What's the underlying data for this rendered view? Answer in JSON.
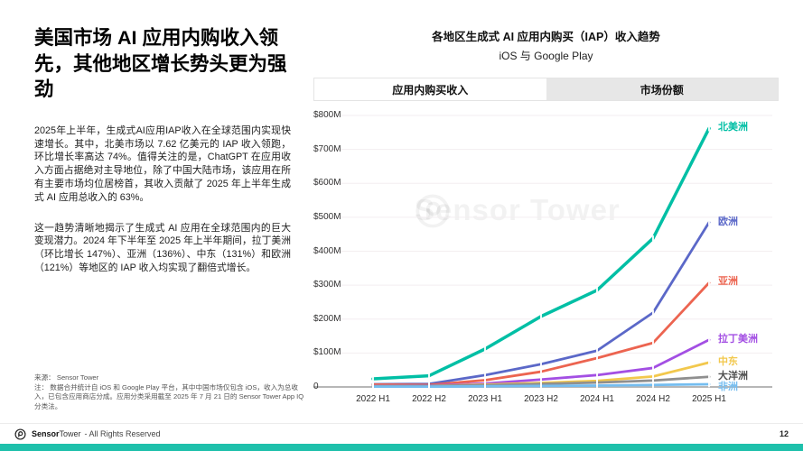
{
  "slide": {
    "title": "美国市场 AI 应用内购收入领先，其他地区增长势头更为强劲",
    "paragraphs": [
      "2025年上半年，生成式AI应用IAP收入在全球范围内实现快速增长。其中，北美市场以 7.62 亿美元的 IAP 收入领跑，环比增长率高达 74%。值得关注的是，ChatGPT 在应用收入方面占据绝对主导地位，除了中国大陆市场，该应用在所有主要市场均位居榜首，其收入贡献了 2025 年上半年生成式 AI 应用总收入的 63%。",
      "这一趋势清晰地揭示了生成式 AI 应用在全球范围内的巨大变现潜力。2024 年下半年至 2025 年上半年期间，拉丁美洲（环比增长 147%）、亚洲（136%）、中东（131%）和欧洲（121%）等地区的 IAP 收入均实现了翻倍式增长。",
      ""
    ],
    "source": "来源： Sensor Tower",
    "note": "注： 数据合并统计自 iOS 和 Google Play 平台，其中中国市场仅包含 iOS，收入为总收入，已包含应用商店分成。应用分类采用截至 2025 年 7 月 21 日的 Sensor Tower App IQ 分类法。"
  },
  "chart": {
    "title_line1": "各地区生成式 AI 应用内购买（IAP）收入趋势",
    "title_line2": "iOS 与 Google Play",
    "tabs": [
      {
        "label": "应用内购买收入",
        "active": true
      },
      {
        "label": "市场份额",
        "active": false
      }
    ],
    "watermark": "Sensor Tower"
  },
  "chart_data": {
    "type": "line",
    "title": "各地区生成式 AI 应用内购买（IAP）收入趋势",
    "subtitle": "iOS 与 Google Play",
    "unit": "USD (millions)",
    "categories": [
      "2022 H1",
      "2022 H2",
      "2023 H1",
      "2023 H2",
      "2024 H1",
      "2024 H2",
      "2025 H1"
    ],
    "ylim": [
      0,
      800
    ],
    "grid": true,
    "legend_position": "right-end-of-line",
    "yticks": [
      {
        "label": "$800M",
        "value": 800
      },
      {
        "label": "$700M",
        "value": 700
      },
      {
        "label": "$600M",
        "value": 600
      },
      {
        "label": "$500M",
        "value": 500
      },
      {
        "label": "$400M",
        "value": 400
      },
      {
        "label": "$300M",
        "value": 300
      },
      {
        "label": "$200M",
        "value": 200
      },
      {
        "label": "$100M",
        "value": 100
      },
      {
        "label": "0",
        "value": 0
      }
    ],
    "series": [
      {
        "key": "north-america",
        "name": "北美洲",
        "color": "#00bfa5",
        "values": [
          24,
          33,
          112,
          208,
          285,
          438,
          762
        ]
      },
      {
        "key": "europe",
        "name": "欧洲",
        "color": "#5b68c8",
        "values": [
          8,
          9,
          35,
          67,
          107,
          219,
          485
        ]
      },
      {
        "key": "asia",
        "name": "亚洲",
        "color": "#ec6450",
        "values": [
          7,
          6,
          20,
          45,
          85,
          130,
          307
        ]
      },
      {
        "key": "latin-america",
        "name": "拉丁美洲",
        "color": "#a34fe3",
        "values": [
          3,
          4,
          10,
          22,
          35,
          56,
          139
        ]
      },
      {
        "key": "middle-east",
        "name": "中东",
        "color": "#f2c84d",
        "values": [
          2,
          3,
          7,
          12,
          18,
          31,
          72
        ]
      },
      {
        "key": "oceania",
        "name": "大洋洲",
        "color": "#8f8f8f",
        "label_color": "#4f4f4f",
        "values": [
          2,
          3,
          5,
          9,
          13,
          19,
          30
        ]
      },
      {
        "key": "africa",
        "name": "非洲",
        "color": "#74bdf0",
        "values": [
          1,
          1,
          2,
          3,
          4,
          6,
          8
        ]
      }
    ]
  },
  "footer": {
    "brand_bold": "Sensor",
    "brand_rest": "Tower",
    "rights": "- All Rights Reserved",
    "page_number": "12"
  },
  "colors": {
    "accent_teal": "#1ec0ab",
    "gridline": "#f3eef0",
    "axis": "#b7b7b7",
    "tab_inactive_bg": "#e7e7e7"
  }
}
